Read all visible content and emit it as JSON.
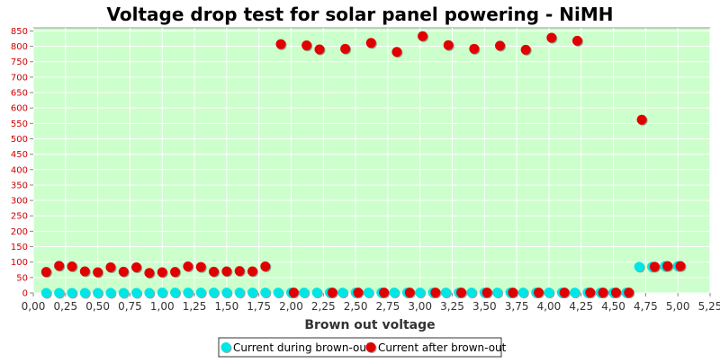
{
  "chart_data": {
    "type": "scatter",
    "title": "Voltage drop test for solar panel powering -  NiMH",
    "xlabel": "Brown out voltage",
    "ylabel": "",
    "xlim": [
      0,
      5.25
    ],
    "ylim": [
      0,
      860
    ],
    "x_ticks": [
      "0,00",
      "0,25",
      "0,50",
      "0,75",
      "1,00",
      "1,25",
      "1,50",
      "1,75",
      "2,00",
      "2,25",
      "2,50",
      "2,75",
      "3,00",
      "3,25",
      "3,50",
      "3,75",
      "4,00",
      "4,25",
      "4,50",
      "4,75",
      "5,00",
      "5,25"
    ],
    "y_ticks": [
      "0",
      "50",
      "100",
      "150",
      "200",
      "250",
      "300",
      "350",
      "400",
      "450",
      "500",
      "550",
      "600",
      "650",
      "700",
      "750",
      "800",
      "850"
    ],
    "grid": true,
    "legend_position": "bottom-center",
    "background_color": "#ccffcc",
    "series": [
      {
        "name": "Current during brown-out",
        "color": "#00e5e5",
        "points": [
          [
            0.1,
            0
          ],
          [
            0.2,
            0
          ],
          [
            0.3,
            0
          ],
          [
            0.4,
            0
          ],
          [
            0.5,
            0
          ],
          [
            0.6,
            0
          ],
          [
            0.7,
            0
          ],
          [
            0.8,
            0
          ],
          [
            0.9,
            0
          ],
          [
            1.0,
            1
          ],
          [
            1.1,
            1
          ],
          [
            1.2,
            1
          ],
          [
            1.3,
            1
          ],
          [
            1.4,
            1
          ],
          [
            1.5,
            1
          ],
          [
            1.6,
            1
          ],
          [
            1.7,
            1
          ],
          [
            1.8,
            1
          ],
          [
            1.9,
            1
          ],
          [
            2.0,
            1
          ],
          [
            2.1,
            1
          ],
          [
            2.2,
            1
          ],
          [
            2.3,
            1
          ],
          [
            2.4,
            1
          ],
          [
            2.5,
            1
          ],
          [
            2.6,
            1
          ],
          [
            2.7,
            1
          ],
          [
            2.8,
            1
          ],
          [
            2.9,
            1
          ],
          [
            3.0,
            1
          ],
          [
            3.1,
            1
          ],
          [
            3.2,
            1
          ],
          [
            3.3,
            1
          ],
          [
            3.4,
            1
          ],
          [
            3.5,
            1
          ],
          [
            3.6,
            1
          ],
          [
            3.7,
            1
          ],
          [
            3.8,
            1
          ],
          [
            3.9,
            1
          ],
          [
            4.0,
            1
          ],
          [
            4.1,
            1
          ],
          [
            4.2,
            1
          ],
          [
            4.3,
            1
          ],
          [
            4.4,
            1
          ],
          [
            4.5,
            1
          ],
          [
            4.6,
            1
          ],
          [
            4.7,
            85
          ],
          [
            4.8,
            85
          ],
          [
            4.9,
            87
          ],
          [
            5.0,
            87
          ]
        ]
      },
      {
        "name": "Current after brown-out",
        "color": "#e00000",
        "points": [
          [
            0.1,
            68
          ],
          [
            0.2,
            88
          ],
          [
            0.3,
            86
          ],
          [
            0.4,
            70
          ],
          [
            0.5,
            67
          ],
          [
            0.6,
            83
          ],
          [
            0.7,
            69
          ],
          [
            0.8,
            83
          ],
          [
            0.9,
            65
          ],
          [
            1.0,
            67
          ],
          [
            1.1,
            68
          ],
          [
            1.2,
            86
          ],
          [
            1.3,
            84
          ],
          [
            1.4,
            69
          ],
          [
            1.5,
            70
          ],
          [
            1.6,
            71
          ],
          [
            1.7,
            70
          ],
          [
            1.8,
            86
          ],
          [
            1.92,
            807
          ],
          [
            2.02,
            1
          ],
          [
            2.12,
            803
          ],
          [
            2.22,
            790
          ],
          [
            2.32,
            1
          ],
          [
            2.42,
            792
          ],
          [
            2.52,
            1
          ],
          [
            2.62,
            811
          ],
          [
            2.72,
            1
          ],
          [
            2.82,
            782
          ],
          [
            2.92,
            1
          ],
          [
            3.02,
            833
          ],
          [
            3.12,
            1
          ],
          [
            3.22,
            804
          ],
          [
            3.32,
            1
          ],
          [
            3.42,
            792
          ],
          [
            3.52,
            1
          ],
          [
            3.62,
            802
          ],
          [
            3.72,
            1
          ],
          [
            3.82,
            789
          ],
          [
            3.92,
            1
          ],
          [
            4.02,
            828
          ],
          [
            4.12,
            1
          ],
          [
            4.22,
            818
          ],
          [
            4.32,
            1
          ],
          [
            4.42,
            1
          ],
          [
            4.52,
            1
          ],
          [
            4.62,
            1
          ],
          [
            4.72,
            562
          ],
          [
            4.82,
            85
          ],
          [
            4.92,
            87
          ],
          [
            5.02,
            87
          ]
        ]
      }
    ]
  }
}
